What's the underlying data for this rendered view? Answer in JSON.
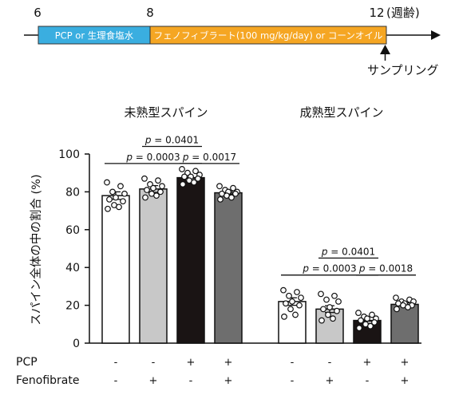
{
  "timeline": {
    "ticks": [
      "6",
      "8",
      "12"
    ],
    "unit_label": "(週齢)",
    "segment1_label": "PCP or 生理食塩水",
    "segment2_label": "フェノフィブラート(100 mg/kg/day) or コーンオイル",
    "sampling_label": "サンプリング",
    "colors": {
      "segment1": "#3aaee0",
      "segment2": "#f5a623"
    }
  },
  "chart_data": {
    "type": "bar",
    "ylabel": "スパイン全体の中の割合 (%)",
    "ylim": [
      0,
      100
    ],
    "yticks": [
      0,
      20,
      40,
      60,
      80,
      100
    ],
    "row_labels": [
      "PCP",
      "Fenofibrate"
    ],
    "bar_colors": [
      "#ffffff",
      "#c8c8c8",
      "#1a1414",
      "#6e6e6e"
    ],
    "panels": [
      {
        "title": "未熟型スパイン",
        "groups": [
          {
            "pcp": "-",
            "feno": "-",
            "value": 78,
            "sem": 2.0,
            "points": [
              85,
              83,
              80,
              79,
              77,
              76,
              75,
              73,
              72,
              71
            ]
          },
          {
            "pcp": "-",
            "feno": "+",
            "value": 81.5,
            "sem": 1.8,
            "points": [
              87,
              86,
              84,
              83,
              82,
              81,
              80,
              79,
              78,
              77
            ]
          },
          {
            "pcp": "+",
            "feno": "-",
            "value": 87.5,
            "sem": 1.0,
            "points": [
              92,
              91,
              90,
              89,
              88,
              88,
              87,
              86,
              85,
              84
            ]
          },
          {
            "pcp": "+",
            "feno": "+",
            "value": 79.5,
            "sem": 0.8,
            "points": [
              83,
              82,
              81,
              80,
              80,
              79,
              79,
              78,
              77,
              76
            ]
          }
        ],
        "significance": [
          {
            "text": "p = 0.0003",
            "from": 0,
            "to": 2,
            "y": 95
          },
          {
            "text": "p = 0.0017",
            "from": 2,
            "to": 3,
            "y": 95
          },
          {
            "text": "p = 0.0401",
            "from": 1,
            "to": 2,
            "y": 104
          }
        ]
      },
      {
        "title": "成熟型スパイン",
        "groups": [
          {
            "pcp": "-",
            "feno": "-",
            "value": 22,
            "sem": 2.0,
            "points": [
              28,
              27,
              25,
              24,
              22,
              21,
              20,
              18,
              15,
              14
            ]
          },
          {
            "pcp": "-",
            "feno": "+",
            "value": 18,
            "sem": 1.8,
            "points": [
              26,
              25,
              23,
              22,
              19,
              18,
              17,
              15,
              13,
              12
            ]
          },
          {
            "pcp": "+",
            "feno": "-",
            "value": 12,
            "sem": 1.0,
            "points": [
              16,
              15,
              14,
              13,
              13,
              12,
              11,
              10,
              9,
              8
            ]
          },
          {
            "pcp": "+",
            "feno": "+",
            "value": 20.5,
            "sem": 0.8,
            "points": [
              24,
              23,
              22,
              22,
              21,
              21,
              20,
              20,
              19,
              18
            ]
          }
        ],
        "significance": [
          {
            "text": "p = 0.0003",
            "from": 0,
            "to": 2,
            "y": 36
          },
          {
            "text": "p = 0.0018",
            "from": 2,
            "to": 3,
            "y": 36
          },
          {
            "text": "p = 0.0401",
            "from": 1,
            "to": 2,
            "y": 45
          }
        ]
      }
    ]
  }
}
